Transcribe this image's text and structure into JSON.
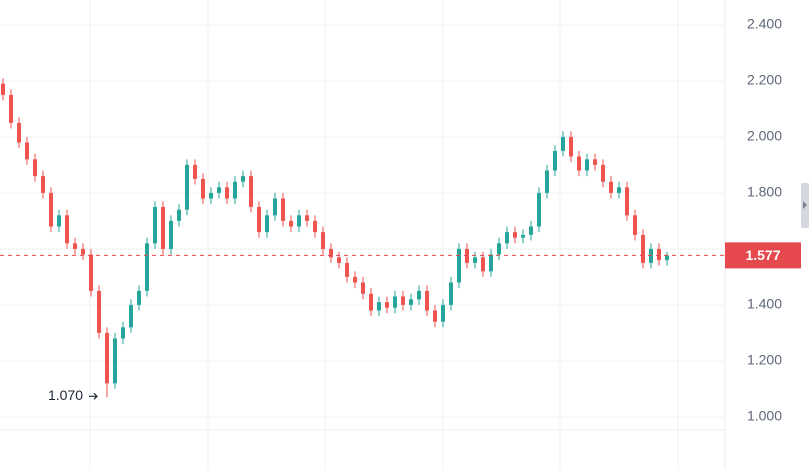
{
  "chart_data": {
    "type": "candlestick",
    "up_color": "#26a69a",
    "down_color": "#ef5350",
    "ylim": [
      0.814,
      2.489
    ],
    "yticks": [
      {
        "value": 1.0,
        "label": "1.000"
      },
      {
        "value": 1.2,
        "label": "1.200"
      },
      {
        "value": 1.4,
        "label": "1.400"
      },
      {
        "value": 1.6,
        "label": "1.600"
      },
      {
        "value": 1.8,
        "label": "1.800"
      },
      {
        "value": 2.0,
        "label": "2.000"
      },
      {
        "value": 2.2,
        "label": "2.200"
      },
      {
        "value": 2.4,
        "label": "2.400"
      }
    ],
    "grid": true,
    "last_price": {
      "value": 1.577,
      "color": "#e5484d"
    },
    "annotations": [
      {
        "value": 1.07,
        "label": "1.070",
        "index": 13
      }
    ],
    "open": [
      2.19,
      2.15,
      2.05,
      1.98,
      1.92,
      1.86,
      1.8,
      1.68,
      1.72,
      1.62,
      1.6,
      1.58,
      1.45,
      1.3,
      1.12,
      1.28,
      1.32,
      1.4,
      1.45,
      1.62,
      1.75,
      1.6,
      1.7,
      1.74,
      1.9,
      1.85,
      1.78,
      1.8,
      1.82,
      1.78,
      1.84,
      1.86,
      1.75,
      1.66,
      1.72,
      1.78,
      1.7,
      1.68,
      1.72,
      1.7,
      1.66,
      1.6,
      1.57,
      1.55,
      1.5,
      1.48,
      1.44,
      1.38,
      1.41,
      1.39,
      1.43,
      1.4,
      1.42,
      1.45,
      1.38,
      1.34,
      1.4,
      1.48,
      1.6,
      1.55,
      1.57,
      1.52,
      1.58,
      1.62,
      1.66,
      1.64,
      1.65,
      1.68,
      1.8,
      1.88,
      1.95,
      2.0,
      1.93,
      1.88,
      1.92,
      1.9,
      1.84,
      1.8,
      1.82,
      1.72,
      1.65,
      1.55,
      1.6,
      1.56
    ],
    "high": [
      2.21,
      2.17,
      2.07,
      2.0,
      1.94,
      1.88,
      1.82,
      1.74,
      1.74,
      1.64,
      1.62,
      1.6,
      1.47,
      1.32,
      1.3,
      1.34,
      1.42,
      1.47,
      1.64,
      1.77,
      1.77,
      1.72,
      1.76,
      1.92,
      1.92,
      1.87,
      1.82,
      1.84,
      1.84,
      1.86,
      1.88,
      1.88,
      1.77,
      1.74,
      1.8,
      1.8,
      1.72,
      1.74,
      1.74,
      1.72,
      1.68,
      1.62,
      1.59,
      1.57,
      1.52,
      1.5,
      1.46,
      1.43,
      1.43,
      1.45,
      1.45,
      1.44,
      1.47,
      1.47,
      1.4,
      1.42,
      1.5,
      1.62,
      1.62,
      1.59,
      1.59,
      1.6,
      1.64,
      1.68,
      1.68,
      1.67,
      1.7,
      1.82,
      1.9,
      1.97,
      2.02,
      2.02,
      1.95,
      1.94,
      1.94,
      1.92,
      1.86,
      1.84,
      1.84,
      1.74,
      1.67,
      1.62,
      1.62,
      1.59
    ],
    "low": [
      2.13,
      2.03,
      1.96,
      1.9,
      1.84,
      1.78,
      1.66,
      1.66,
      1.6,
      1.58,
      1.56,
      1.43,
      1.28,
      1.07,
      1.1,
      1.26,
      1.3,
      1.38,
      1.43,
      1.6,
      1.58,
      1.58,
      1.68,
      1.72,
      1.83,
      1.76,
      1.76,
      1.78,
      1.76,
      1.76,
      1.82,
      1.73,
      1.64,
      1.64,
      1.7,
      1.68,
      1.66,
      1.66,
      1.68,
      1.64,
      1.58,
      1.55,
      1.53,
      1.48,
      1.46,
      1.42,
      1.36,
      1.36,
      1.37,
      1.37,
      1.38,
      1.38,
      1.4,
      1.36,
      1.32,
      1.32,
      1.38,
      1.46,
      1.53,
      1.53,
      1.5,
      1.5,
      1.56,
      1.6,
      1.62,
      1.62,
      1.63,
      1.66,
      1.78,
      1.86,
      1.93,
      1.91,
      1.86,
      1.86,
      1.88,
      1.82,
      1.78,
      1.78,
      1.7,
      1.63,
      1.53,
      1.53,
      1.54,
      1.54
    ],
    "close": [
      2.15,
      2.05,
      1.98,
      1.92,
      1.86,
      1.8,
      1.68,
      1.72,
      1.62,
      1.6,
      1.58,
      1.45,
      1.3,
      1.12,
      1.28,
      1.32,
      1.4,
      1.45,
      1.62,
      1.75,
      1.6,
      1.7,
      1.74,
      1.9,
      1.85,
      1.78,
      1.8,
      1.82,
      1.78,
      1.84,
      1.86,
      1.75,
      1.66,
      1.72,
      1.78,
      1.7,
      1.68,
      1.72,
      1.7,
      1.66,
      1.6,
      1.57,
      1.55,
      1.5,
      1.48,
      1.44,
      1.38,
      1.41,
      1.39,
      1.43,
      1.4,
      1.42,
      1.45,
      1.38,
      1.34,
      1.4,
      1.48,
      1.6,
      1.55,
      1.57,
      1.52,
      1.58,
      1.62,
      1.66,
      1.64,
      1.65,
      1.68,
      1.8,
      1.88,
      1.95,
      2.0,
      1.93,
      1.88,
      1.92,
      1.9,
      1.84,
      1.8,
      1.82,
      1.72,
      1.65,
      1.55,
      1.6,
      1.56,
      1.577
    ]
  }
}
